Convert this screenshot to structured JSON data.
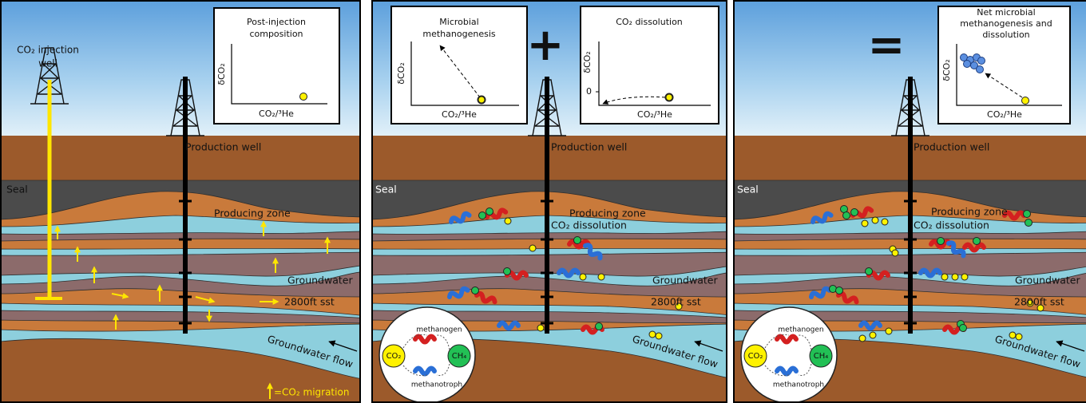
{
  "panels": [
    {
      "inset": {
        "title": [
          "Post-injection",
          "composition"
        ],
        "y_axis": "δCO₂",
        "x_axis": "CO₂/³He"
      },
      "labels": {
        "injection_well": [
          "CO₂ injection",
          "well"
        ],
        "production_well": "Production well",
        "seal": "Seal",
        "producing_zone": "Producing zone",
        "groundwater": "Groundwater",
        "sst": "2800ft sst",
        "groundwater_flow": "Groundwater flow",
        "legend": "=CO₂ migration"
      }
    },
    {
      "operator": "+",
      "insets": [
        {
          "title": [
            "Microbial",
            "methanogenesis"
          ],
          "y_axis": "δCO₂",
          "x_axis": "CO₂/³He"
        },
        {
          "title": [
            "CO₂ dissolution"
          ],
          "y_axis": "δCO₂",
          "y_tick": "0",
          "x_axis": "CO₂/³He"
        }
      ],
      "labels": {
        "production_well": "Production well",
        "seal": "Seal",
        "producing_zone": "Producing zone",
        "co2_dissolution": "CO₂ dissolution",
        "groundwater": "Groundwater",
        "sst": "2800ft sst",
        "groundwater_flow": "Groundwater flow"
      },
      "cycle": {
        "methanogen": "methanogen",
        "co2": "CO₂",
        "ch4": "CH₄",
        "methanotroph": "methanotroph"
      }
    },
    {
      "operator": "=",
      "inset": {
        "title": [
          "Net microbial",
          "methanogenesis and",
          "dissolution"
        ],
        "y_axis": "δCO₂",
        "x_axis": "CO₂/³He"
      },
      "labels": {
        "production_well": "Production well",
        "seal": "Seal",
        "producing_zone": "Producing zone",
        "co2_dissolution": "CO₂ dissolution",
        "groundwater": "Groundwater",
        "sst": "2800ft sst",
        "groundwater_flow": "Groundwater flow"
      },
      "cycle": {
        "methanogen": "methanogen",
        "co2": "CO₂",
        "ch4": "CH₄",
        "methanotroph": "methanotroph"
      }
    }
  ]
}
